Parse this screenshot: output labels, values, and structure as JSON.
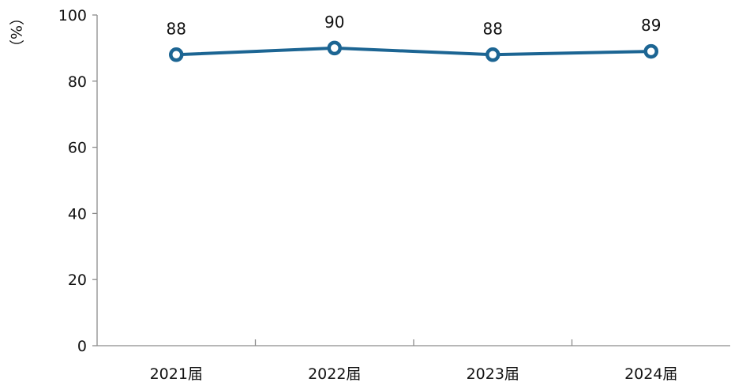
{
  "chart_data": {
    "type": "line",
    "categories": [
      "2021届",
      "2022届",
      "2023届",
      "2024届"
    ],
    "series": [
      {
        "values": [
          88,
          90,
          88,
          89
        ]
      }
    ],
    "data_labels": [
      "88",
      "90",
      "88",
      "89"
    ],
    "y_unit_label": "（%）",
    "ylim": [
      0,
      100
    ],
    "yticks": [
      0,
      20,
      40,
      60,
      80,
      100
    ],
    "ytick_labels": [
      "0",
      "20",
      "40",
      "60",
      "80",
      "100"
    ],
    "grid": false,
    "legend": "none",
    "line_color": "#1c6593",
    "marker_fill": "#ffffff"
  }
}
